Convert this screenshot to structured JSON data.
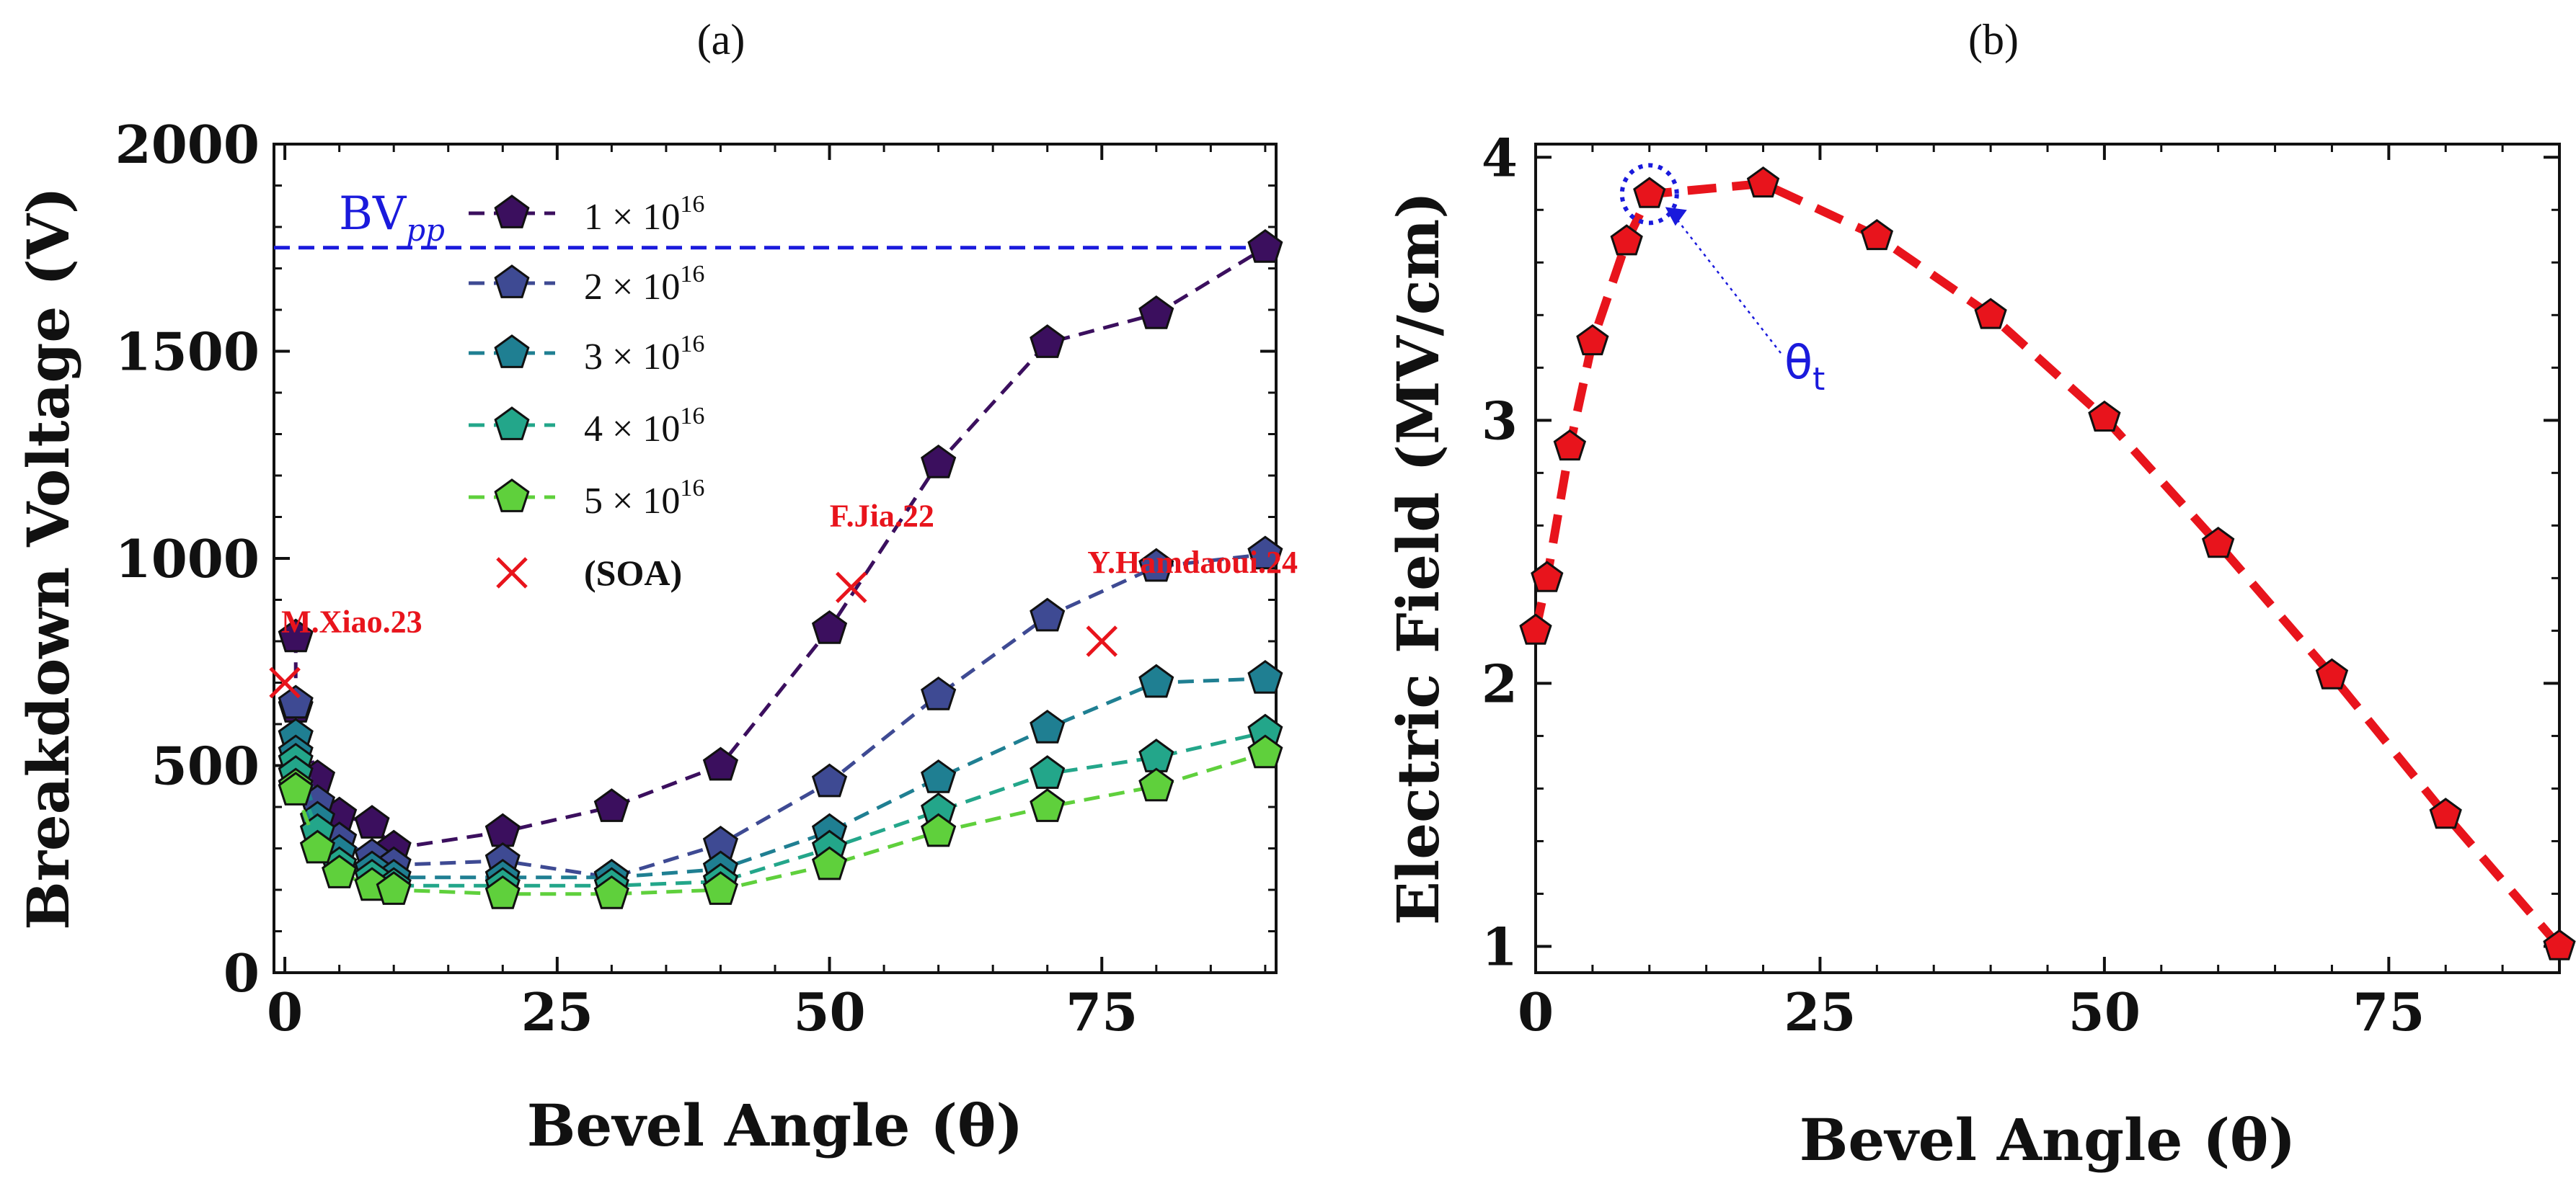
{
  "chart_data": [
    {
      "panel_label": "(a)",
      "type": "line",
      "xlabel": "Bevel Angle (θ)",
      "ylabel": "Breakdown Voltage (V)",
      "xlim": [
        -1,
        91
      ],
      "ylim": [
        0,
        2000
      ],
      "xticks": [
        0,
        25,
        50,
        75
      ],
      "yticks": [
        0,
        500,
        1000,
        1500,
        2000
      ],
      "grid": false,
      "legend_position": "upper-left",
      "reference_line": {
        "label_main": "BV",
        "label_sub": "pp",
        "value": 1750,
        "color": "#1a1adc"
      },
      "x": [
        1,
        1,
        3,
        5,
        8,
        10,
        20,
        30,
        40,
        50,
        60,
        70,
        80,
        90
      ],
      "series": [
        {
          "name_prefix": "1 × 10",
          "name_exp": "16",
          "color": "#3b0f5e",
          "values": [
            810,
            640,
            470,
            380,
            360,
            300,
            340,
            400,
            500,
            830,
            1230,
            1520,
            1590,
            1750
          ]
        },
        {
          "name_prefix": "2 × 10",
          "name_exp": "16",
          "color": "#3e4a93",
          "values": [
            650,
            570,
            410,
            320,
            280,
            260,
            270,
            230,
            310,
            460,
            670,
            860,
            980,
            1010
          ]
        },
        {
          "name_prefix": "3 × 10",
          "name_exp": "16",
          "color": "#1f7f92",
          "values": [
            570,
            530,
            370,
            290,
            250,
            230,
            230,
            230,
            250,
            340,
            470,
            590,
            700,
            710
          ]
        },
        {
          "name_prefix": "4 × 10",
          "name_exp": "16",
          "color": "#23a68a",
          "values": [
            510,
            480,
            340,
            260,
            230,
            210,
            210,
            210,
            220,
            300,
            390,
            480,
            520,
            580
          ]
        },
        {
          "name_prefix": "5 × 10",
          "name_exp": "16",
          "color": "#5fd03c",
          "values": [
            450,
            440,
            300,
            240,
            210,
            200,
            190,
            190,
            200,
            260,
            340,
            400,
            450,
            530
          ]
        }
      ],
      "soa_legend": "(SOA)",
      "soa_points": [
        {
          "label": "M.Xiao.23",
          "x": 0,
          "y": 700
        },
        {
          "label": "F.Jia.22",
          "x": 52,
          "y": 930
        },
        {
          "label": "Y.Hamdaoui.24",
          "x": 75,
          "y": 800
        }
      ]
    },
    {
      "panel_label": "(b)",
      "type": "line",
      "xlabel": "Bevel Angle (θ)",
      "ylabel": "Electric Field (MV/cm)",
      "xlim": [
        0,
        90
      ],
      "ylim": [
        0.9,
        4.05
      ],
      "xticks": [
        0,
        25,
        50,
        75
      ],
      "yticks": [
        1,
        2,
        3,
        4
      ],
      "grid": false,
      "series": [
        {
          "name": "Electric Field",
          "color": "#e8141c",
          "x": [
            0,
            1,
            3,
            5,
            8,
            10,
            20,
            30,
            40,
            50,
            60,
            70,
            80,
            90
          ],
          "values": [
            2.2,
            2.4,
            2.9,
            3.3,
            3.68,
            3.86,
            3.9,
            3.7,
            3.4,
            3.01,
            2.53,
            2.03,
            1.5,
            1.0
          ]
        }
      ],
      "annotation": {
        "symbol": "θ",
        "subscript": "t",
        "target_x": 10,
        "target_y": 3.86,
        "color": "#1a1adc"
      }
    }
  ]
}
